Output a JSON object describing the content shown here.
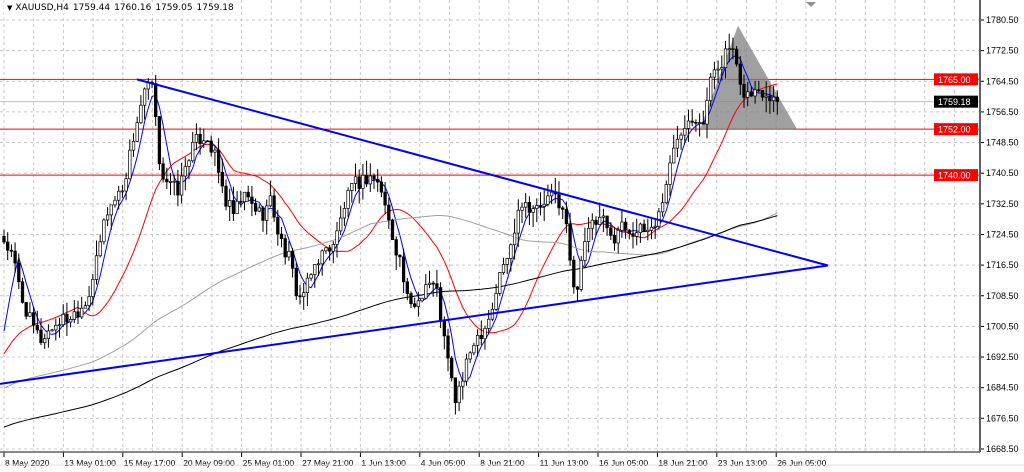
{
  "header": {
    "symbol": "XAUUSD,H4",
    "open": "1759.44",
    "high": "1760.16",
    "low": "1759.05",
    "close": "1759.18"
  },
  "chart_data": {
    "type": "candlestick",
    "symbol": "XAUUSD",
    "timeframe": "H4",
    "ylim": [
      1668.5,
      1780.5
    ],
    "y_ticks": [
      "1780.50",
      "1772.50",
      "1764.50",
      "1756.50",
      "1748.50",
      "1740.50",
      "1732.50",
      "1724.50",
      "1716.50",
      "1708.50",
      "1700.50",
      "1692.50",
      "1684.50",
      "1676.50",
      "1668.50"
    ],
    "x_ticks": [
      "8 May 2020",
      "13 May 01:00",
      "15 May 17:00",
      "20 May 09:00",
      "25 May 01:00",
      "27 May 21:00",
      "1 Jun 13:00",
      "4 Jun 05:00",
      "8 Jun 21:00",
      "11 Jun 13:00",
      "16 Jun 05:00",
      "18 Jun 21:00",
      "23 Jun 13:00",
      "26 Jun 05:00"
    ],
    "grid": true,
    "approx_close_path": [
      1723,
      1718,
      1707.4,
      1700.9,
      1697,
      1699.6,
      1702,
      1702.7,
      1704.8,
      1707.4,
      1716.5,
      1729.6,
      1733.5,
      1737.4,
      1749.2,
      1759.6,
      1764.8,
      1741.3,
      1737.4,
      1736,
      1745,
      1749.2,
      1750.5,
      1744,
      1733.5,
      1729.6,
      1734.8,
      1732.2,
      1729.6,
      1733.5,
      1723,
      1718,
      1707.4,
      1711.3,
      1718,
      1720.4,
      1723,
      1732.2,
      1737.4,
      1738.7,
      1740,
      1736,
      1725.7,
      1718,
      1704.8,
      1707.4,
      1712.6,
      1710,
      1694.3,
      1681.3,
      1687.8,
      1697,
      1699.6,
      1704.8,
      1715.2,
      1720.4,
      1733.5,
      1732.2,
      1730.9,
      1733.5,
      1734.8,
      1728.3,
      1707.4,
      1723,
      1727,
      1728.3,
      1723,
      1727,
      1725.7,
      1725.2,
      1725.7,
      1728.3,
      1738.7,
      1749.2,
      1754.4,
      1755.7,
      1754.4,
      1767.4,
      1770,
      1774,
      1762.2,
      1760.9,
      1762.2,
      1761.7,
      1759.2
    ],
    "moving_averages": [
      {
        "color": "#0000ff",
        "period": 5
      },
      {
        "color": "#ff0000",
        "period": 21
      },
      {
        "color": "#a0a0a0",
        "period": 100
      },
      {
        "color": "#000000",
        "period": 200
      }
    ],
    "horizontal_levels": [
      {
        "price": 1765.0,
        "label": "1765.00",
        "color": "#ff0000"
      },
      {
        "price": 1752.0,
        "label": "1752.00",
        "color": "#ff0000"
      },
      {
        "price": 1740.0,
        "label": "1740.00",
        "color": "#ff0000"
      }
    ],
    "current_price": {
      "price": 1759.18,
      "label": "1759.18",
      "line_color": "#c0c0c0",
      "label_bg": "#000000"
    },
    "trendlines": [
      {
        "name": "upper-trendline",
        "color": "#0000ff",
        "from": {
          "time": "15 May 17:00",
          "price": 1765.0
        },
        "to": {
          "price": 1716.4
        }
      },
      {
        "name": "lower-trendline",
        "color": "#0000ff",
        "from": {
          "time": "8 May 2020",
          "price": 1685.5
        },
        "to": {
          "price": 1716.4
        }
      }
    ],
    "triangle_pattern": {
      "color": "#808080",
      "base_price": 1752.0,
      "apex_price": 1779.0
    },
    "colors": {
      "bull_body": "#ffffff",
      "bear_body": "#000000",
      "wick": "#000000",
      "grid": "#c8c8c8"
    }
  }
}
